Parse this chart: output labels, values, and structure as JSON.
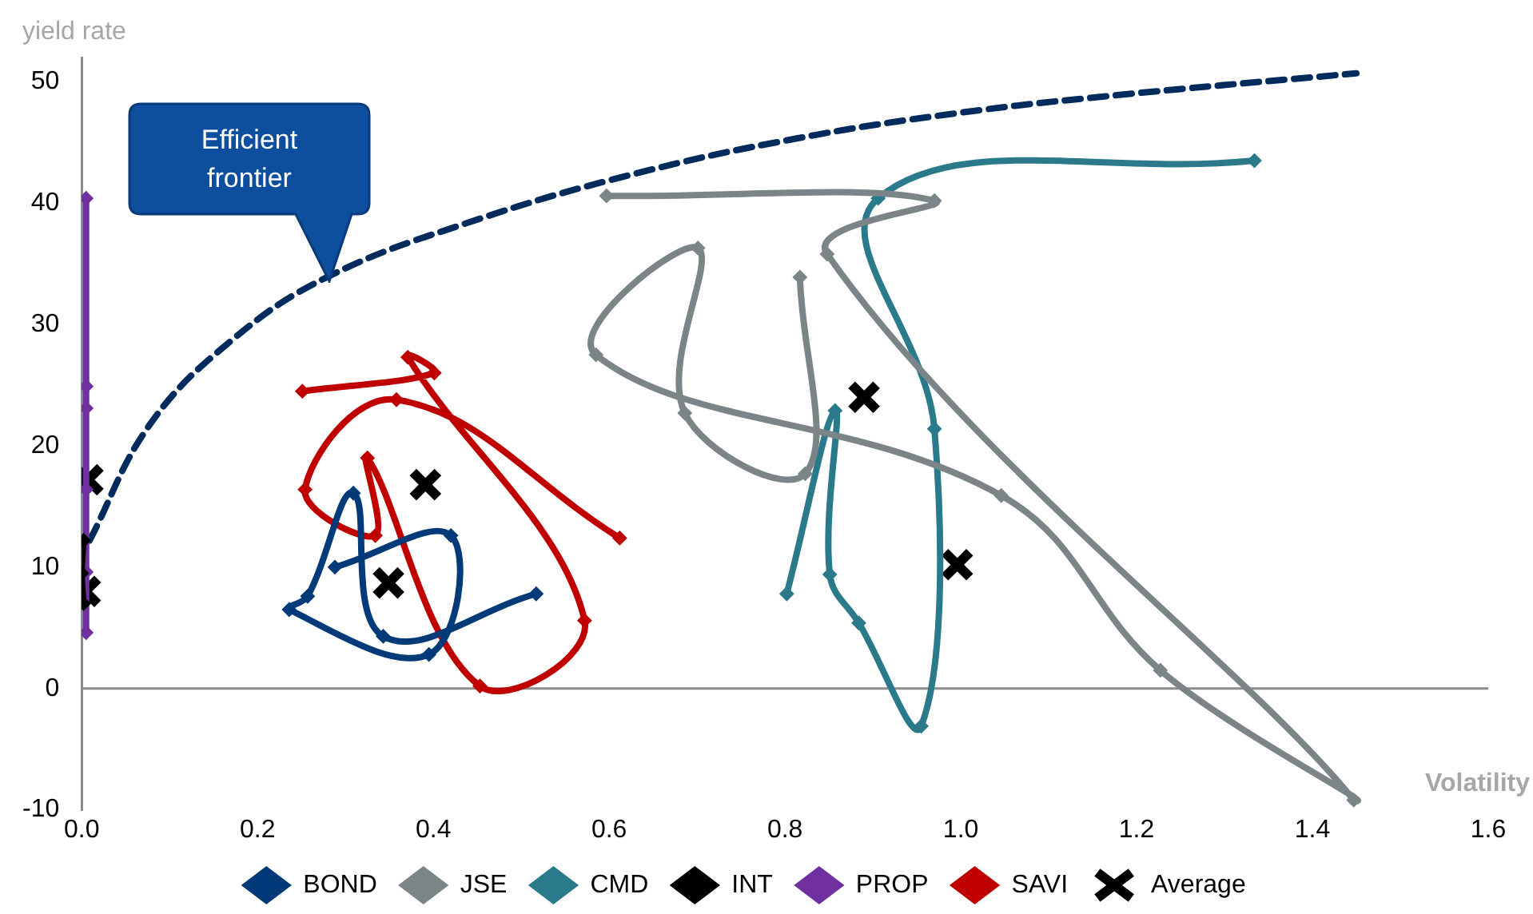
{
  "chart_data": {
    "type": "line",
    "xlabel": "Volatility",
    "ylabel": "yield rate",
    "xlim": [
      0,
      1.6
    ],
    "xticks": [
      {
        "value": 0,
        "label": "0.0"
      },
      {
        "value": 0.2,
        "label": "0.2"
      },
      {
        "value": 0.4,
        "label": "0.4"
      },
      {
        "value": 0.6,
        "label": "0.6"
      },
      {
        "value": 0.8,
        "label": "0.8"
      },
      {
        "value": 1,
        "label": "1.0"
      },
      {
        "value": 1.2,
        "label": "1.2"
      },
      {
        "value": 1.4,
        "label": "1.4"
      },
      {
        "value": 1.6,
        "label": "1.6"
      }
    ],
    "ylim": [
      -10,
      52
    ],
    "yticks": [
      -10,
      0,
      10,
      20,
      30,
      40,
      50
    ],
    "grid": false,
    "legend": "bottom",
    "marker": "diamond",
    "line_style": "solid",
    "annotations": [
      "Efficient frontier"
    ],
    "ref_lines": [
      {
        "axis": "y",
        "value": 0,
        "color": "#8c8c8c"
      }
    ],
    "series": [
      {
        "name": "BOND",
        "type": "line",
        "color": "#003a78",
        "x": [
          0.288,
          0.42,
          0.395,
          0.236,
          0.257,
          0.309,
          0.343,
          0.517
        ],
        "values": [
          10.0,
          12.6,
          2.8,
          6.5,
          7.6,
          16.1,
          4.3,
          7.8
        ]
      },
      {
        "name": "JSE",
        "type": "line",
        "color": "#7b8587",
        "x": [
          0.597,
          0.97,
          0.848,
          1.447,
          1.227,
          1.046,
          0.585,
          0.701,
          0.686,
          0.823,
          0.817
        ],
        "values": [
          40.6,
          40.2,
          35.8,
          -9.2,
          1.5,
          15.9,
          27.5,
          36.3,
          22.7,
          17.7,
          33.9
        ]
      },
      {
        "name": "CMD",
        "type": "line",
        "color": "#2a7a8c",
        "x": [
          0.802,
          0.857,
          0.851,
          0.884,
          0.955,
          0.97,
          0.906,
          1.334
        ],
        "values": [
          7.8,
          22.9,
          9.4,
          5.4,
          -3.1,
          21.4,
          40.4,
          43.5
        ]
      },
      {
        "name": "INT",
        "type": "line",
        "color": "#000000",
        "x": [
          0.002,
          0.0,
          0.002
        ],
        "values": [
          12.2,
          9.5,
          7.0
        ]
      },
      {
        "name": "PROP",
        "type": "line",
        "color": "#7030a0",
        "x": [
          0.005,
          0.005,
          0.005,
          0.005,
          0.005,
          0.005
        ],
        "values": [
          40.4,
          24.9,
          23.1,
          16.4,
          9.6,
          4.6
        ]
      },
      {
        "name": "SAVI",
        "type": "line",
        "color": "#c00000",
        "x": [
          0.251,
          0.401,
          0.371,
          0.572,
          0.453,
          0.325,
          0.334,
          0.254,
          0.358,
          0.612
        ],
        "values": [
          24.5,
          26.0,
          27.3,
          5.6,
          0.2,
          19.0,
          12.6,
          16.4,
          23.8,
          12.4
        ]
      },
      {
        "name": "Average",
        "type": "scatter",
        "marker": "cross",
        "color": "#000000",
        "x": [
          0.007,
          0.004,
          0.349,
          0.391,
          0.89,
          0.996
        ],
        "values": [
          17.2,
          8.0,
          8.7,
          16.8,
          24.0,
          10.2
        ]
      },
      {
        "type": "line",
        "marker": "none",
        "line_style": "dashed",
        "color": "#002b5c",
        "x": [
          0.009,
          0.077,
          0.169,
          0.279,
          0.444,
          0.628,
          0.811,
          0.994,
          1.178,
          1.45
        ],
        "values": [
          12.2,
          21.7,
          28.6,
          33.9,
          38.5,
          42.4,
          45.3,
          47.4,
          48.9,
          50.7
        ]
      }
    ]
  }
}
